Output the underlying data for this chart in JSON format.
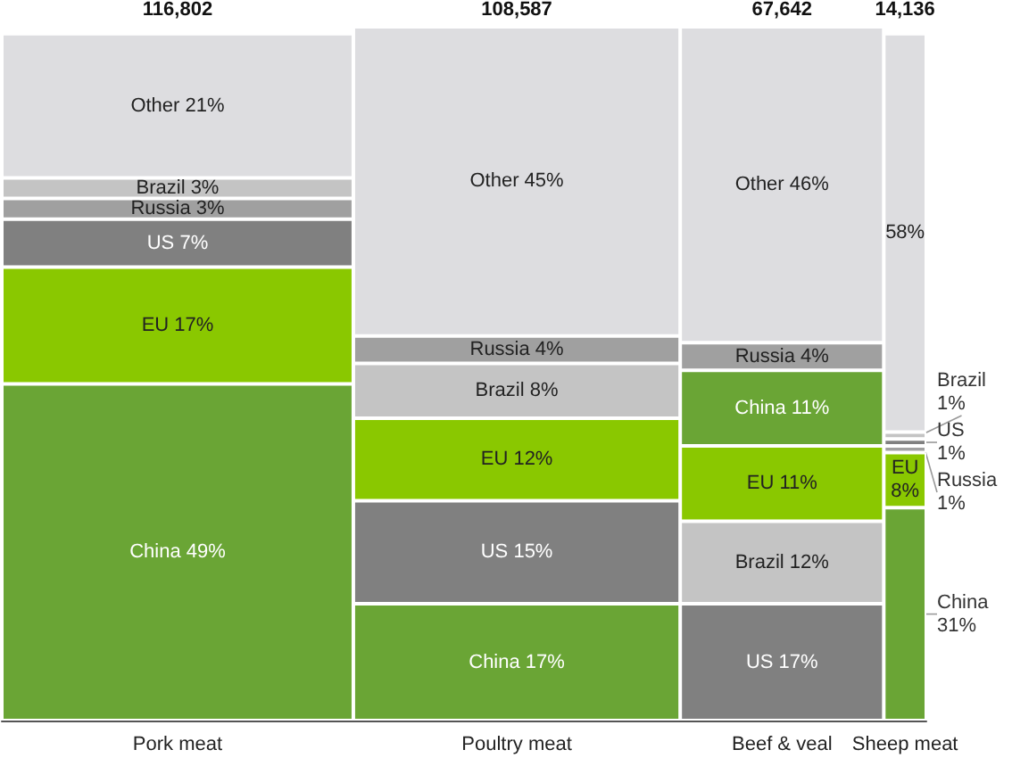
{
  "chart_data": {
    "type": "bar",
    "stacked": true,
    "tick_labels": "x",
    "categories": [
      "Pork meat",
      "Poultry meat",
      "Beef & veal",
      "Sheep meat"
    ],
    "annotations": [
      "116,802",
      "108,587",
      "67,642",
      "14,136"
    ],
    "series": [
      {
        "values": [
          49,
          17,
          17,
          31
        ],
        "colors": [
          "#6aa535",
          "#6aa535",
          "#808080",
          "#6aa535"
        ],
        "value_labels": [
          "China 49%",
          "China 17%",
          "US 17%",
          "China 31%"
        ]
      },
      {
        "values": [
          17,
          15,
          12,
          8
        ],
        "colors": [
          "#8ac800",
          "#808080",
          "#c4c4c4",
          "#8ac800"
        ],
        "value_labels": [
          "EU 17%",
          "US 15%",
          "Brazil 12%",
          "EU 8%"
        ]
      },
      {
        "values": [
          7,
          12,
          11,
          1
        ],
        "colors": [
          "#808080",
          "#8ac800",
          "#8ac800",
          "#a0a0a0"
        ],
        "value_labels": [
          "US 7%",
          "EU 12%",
          "EU 11%",
          "Russia 1%"
        ]
      },
      {
        "values": [
          3,
          8,
          11,
          1
        ],
        "colors": [
          "#a0a0a0",
          "#c4c4c4",
          "#6aa535",
          "#808080"
        ],
        "value_labels": [
          "Russia 3%",
          "Brazil 8%",
          "China 11%",
          "US 1%"
        ]
      },
      {
        "values": [
          3,
          4,
          4,
          1
        ],
        "colors": [
          "#c4c4c4",
          "#a0a0a0",
          "#a0a0a0",
          "#c4c4c4"
        ],
        "value_labels": [
          "Brazil 3%",
          "Russia 4%",
          "Russia 4%",
          "Brazil 1%"
        ]
      },
      {
        "values": [
          21,
          45,
          46,
          58
        ],
        "colors": [
          "#dddde0",
          "#dddde0",
          "#dddde0",
          "#dddde0"
        ],
        "value_labels": [
          "Other 21%",
          "Other 45%",
          "Other 46%",
          "58%"
        ]
      }
    ]
  }
}
